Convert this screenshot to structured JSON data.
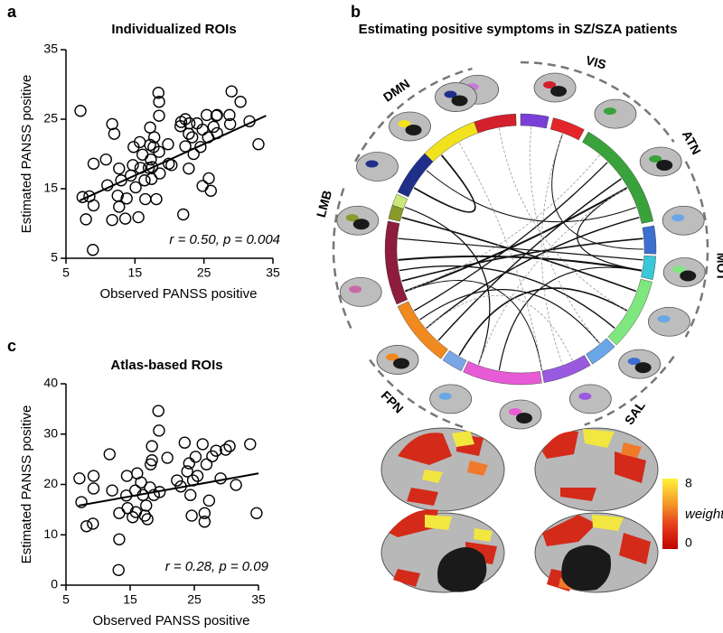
{
  "chart_data": [
    {
      "type": "scatter",
      "panel": "a",
      "title": "Individualized ROIs",
      "xlabel": "Observed PANSS positive",
      "ylabel": "Estimated PANSS positive",
      "annotation": "r = 0.50, p = 0.004",
      "x": [
        7.1,
        7.4,
        7.9,
        8.9,
        9,
        9,
        8.4,
        10.8,
        11,
        11.7,
        12,
        11.7,
        12.5,
        12.7,
        12.7,
        13,
        13.6,
        13.8,
        14.4,
        14.7,
        14.8,
        15.1,
        15.5,
        15.7,
        15.8,
        16.1,
        16.4,
        16.5,
        17,
        17.2,
        17.2,
        17.3,
        17.4,
        17.5,
        17.7,
        17.8,
        18.1,
        18.4,
        18.5,
        18.5,
        18.5,
        18.6,
        19.8,
        19.9,
        20.3,
        21.6,
        21.7,
        22,
        22.3,
        22.3,
        22.8,
        22.8,
        22.9,
        23.3,
        23.5,
        24,
        24.5,
        24.8,
        24.8,
        25.4,
        25.6,
        25.7,
        26.4,
        26.9,
        26,
        26.8,
        26.9,
        28.7,
        29,
        28.8,
        30.3,
        31.6,
        32.9
      ],
      "values": [
        26.2,
        13.8,
        10.6,
        6.2,
        18.6,
        12.6,
        13.9,
        19.2,
        15.5,
        24.3,
        22.9,
        10.5,
        14,
        17.9,
        12.4,
        16.2,
        10.7,
        13.6,
        16.9,
        18.4,
        21,
        15.2,
        10.9,
        21.7,
        18,
        19.9,
        16.2,
        13.5,
        18,
        23.8,
        21.3,
        19.2,
        16.4,
        18.1,
        21,
        22.4,
        13.5,
        28.8,
        27.5,
        25.5,
        20.3,
        17.2,
        21.4,
        18.6,
        18.4,
        24,
        24.6,
        11.3,
        25,
        21.1,
        22.9,
        17.9,
        24.4,
        22.4,
        20,
        24.4,
        21,
        23.5,
        15.4,
        25.6,
        22.4,
        16.5,
        23.9,
        25.6,
        14.7,
        25.5,
        23,
        25.6,
        29,
        24.3,
        27.5,
        24.7,
        21.4
      ],
      "trend_line": {
        "x": [
          7,
          34
        ],
        "y": [
          13.3,
          25.5
        ]
      },
      "color": "#000000",
      "xlim": [
        5,
        35
      ],
      "xticks": [
        5,
        15,
        25,
        35
      ],
      "ylim": [
        5,
        35
      ],
      "yticks": [
        5,
        15,
        25,
        35
      ]
    },
    {
      "type": "scatter",
      "panel": "c",
      "title": "Atlas-based ROIs",
      "xlabel": "Observed PANSS positive",
      "ylabel": "Estimated PANSS positive",
      "annotation": "r = 0.28, p = 0.09",
      "x": [
        7.1,
        7.4,
        8.2,
        9.2,
        9.3,
        9.3,
        11.8,
        12.2,
        13.3,
        13.3,
        13.2,
        14.4,
        14.5,
        14.6,
        15.4,
        15.8,
        15.9,
        16.1,
        16.7,
        17,
        17.3,
        17.5,
        17.7,
        18.1,
        18.2,
        18.4,
        18.4,
        18.7,
        19.4,
        19.5,
        19.6,
        20.8,
        22.3,
        22.9,
        23.5,
        23.9,
        24.2,
        24.4,
        24.6,
        24.8,
        25.2,
        25.5,
        26.3,
        26.6,
        26.6,
        26.9,
        27.3,
        27.8,
        28.4,
        29.1,
        29.9,
        30.5,
        31.5,
        33.7,
        34.7
      ],
      "values": [
        21.2,
        16.5,
        11.7,
        12.2,
        19.2,
        21.7,
        26,
        18.8,
        14.3,
        9.1,
        3.0,
        17.8,
        21.7,
        15.3,
        13.5,
        18.8,
        14.5,
        22.2,
        20.4,
        17.9,
        13.8,
        15.8,
        13.1,
        19.4,
        24,
        27.6,
        24.8,
        17.9,
        34.6,
        30.7,
        18.5,
        25.3,
        20.8,
        19.6,
        28.3,
        22.6,
        24.2,
        17.9,
        13.8,
        20.8,
        25.5,
        21.7,
        28,
        14.3,
        12.6,
        24,
        16.8,
        25.6,
        26.7,
        21.2,
        26.9,
        27.6,
        19.9,
        28,
        14.3
      ],
      "trend_line": {
        "x": [
          7,
          35
        ],
        "y": [
          15.8,
          22.2
        ]
      },
      "color": "#000000",
      "xlim": [
        5,
        35
      ],
      "xticks": [
        5,
        15,
        25,
        35
      ],
      "ylim": [
        0,
        40
      ],
      "yticks": [
        0,
        10,
        20,
        30,
        40
      ]
    }
  ],
  "connectivity": {
    "panel": "b",
    "title": "Estimating positive symptoms in SZ/SZA patients",
    "networks": [
      "DMN",
      "VIS",
      "ATN",
      "MOT",
      "SAL",
      "FPN",
      "LMB"
    ],
    "colorbar": {
      "label": "weight",
      "range": [
        0,
        8
      ],
      "ticks": [
        8,
        0
      ]
    }
  }
}
